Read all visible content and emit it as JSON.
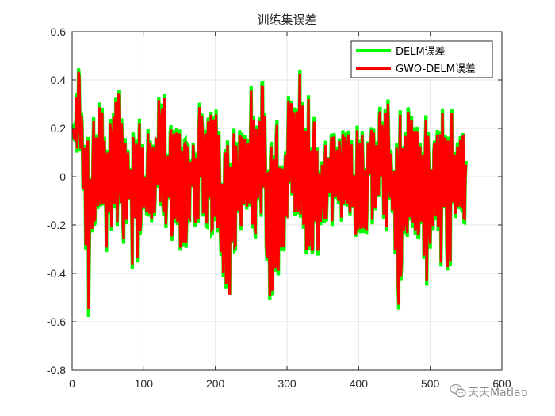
{
  "chart_data": {
    "type": "line",
    "title": "训练集误差",
    "xlabel": "",
    "ylabel": "",
    "xlim": [
      0,
      600
    ],
    "ylim": [
      -0.8,
      0.6
    ],
    "xticks": [
      0,
      100,
      200,
      300,
      400,
      500,
      600
    ],
    "yticks": [
      -0.8,
      -0.6,
      -0.4,
      -0.2,
      0,
      0.2,
      0.4,
      0.6
    ],
    "xtick_labels": [
      "0",
      "100",
      "200",
      "300",
      "400",
      "500",
      "600"
    ],
    "ytick_labels": [
      "-0.8",
      "-0.6",
      "-0.4",
      "-0.2",
      "0",
      "0.2",
      "0.4",
      "0.6"
    ],
    "grid": true,
    "legend_position": "top-right",
    "n_points": 550,
    "x_start": 1,
    "series": [
      {
        "name": "DELM误差",
        "color": "#00ff00",
        "envelope_x": [
          1,
          5,
          10,
          15,
          20,
          22,
          25,
          30,
          35,
          40,
          45,
          50,
          55,
          60,
          65,
          70,
          75,
          80,
          85,
          90,
          95,
          100,
          105,
          110,
          115,
          120,
          125,
          130,
          135,
          140,
          145,
          150,
          155,
          160,
          165,
          170,
          175,
          180,
          185,
          190,
          195,
          200,
          205,
          210,
          215,
          220,
          225,
          230,
          235,
          240,
          245,
          250,
          255,
          260,
          265,
          270,
          275,
          280,
          285,
          290,
          295,
          300,
          305,
          310,
          315,
          320,
          325,
          330,
          335,
          340,
          345,
          350,
          355,
          360,
          365,
          370,
          375,
          380,
          385,
          390,
          395,
          400,
          405,
          410,
          415,
          420,
          425,
          430,
          435,
          440,
          445,
          450,
          455,
          460,
          465,
          470,
          475,
          480,
          485,
          490,
          495,
          500,
          505,
          510,
          515,
          520,
          525,
          530,
          535,
          540,
          545,
          550
        ],
        "envelope_max": [
          0.22,
          0.3,
          0.55,
          0.15,
          0.3,
          0.25,
          0.2,
          0.3,
          0.25,
          0.35,
          0.2,
          0.25,
          0.3,
          0.32,
          0.48,
          0.2,
          0.15,
          0.25,
          0.2,
          0.2,
          0.28,
          0.15,
          0.2,
          0.3,
          0.25,
          0.48,
          0.3,
          0.38,
          0.2,
          0.28,
          0.2,
          0.25,
          0.15,
          0.2,
          0.15,
          0.32,
          0.1,
          0.48,
          0.25,
          0.3,
          0.4,
          0.3,
          0.2,
          0.22,
          0.2,
          0.15,
          0.2,
          0.22,
          0.2,
          0.25,
          0.2,
          0.38,
          0.35,
          0.2,
          0.45,
          0.3,
          0.25,
          0.1,
          0.25,
          0.2,
          0.15,
          0.25,
          0.52,
          0.3,
          0.45,
          0.48,
          0.32,
          0.42,
          0.2,
          0.3,
          0.15,
          0.1,
          0.2,
          0.25,
          0.25,
          0.2,
          0.3,
          0.2,
          0.25,
          0.18,
          0.2,
          0.25,
          0.22,
          0.15,
          0.45,
          0.25,
          0.2,
          0.3,
          0.32,
          0.4,
          0.15,
          0.2,
          0.15,
          0.38,
          0.25,
          0.32,
          0.3,
          0.25,
          0.2,
          0.25,
          0.3,
          0.2,
          0.35,
          0.2,
          0.32,
          0.38,
          0.25,
          0.3,
          0.2,
          0.15,
          0.3,
          0.1
        ],
        "envelope_min": [
          0.1,
          0.05,
          0.1,
          -0.1,
          -0.4,
          -0.68,
          -0.4,
          -0.25,
          -0.2,
          -0.35,
          -0.3,
          -0.35,
          -0.3,
          -0.2,
          -0.3,
          -0.35,
          -0.2,
          -0.3,
          -0.43,
          -0.38,
          -0.3,
          -0.25,
          -0.2,
          -0.3,
          -0.3,
          -0.15,
          -0.2,
          -0.3,
          -0.25,
          -0.3,
          -0.2,
          -0.45,
          -0.35,
          -0.3,
          -0.2,
          -0.25,
          -0.2,
          -0.3,
          -0.25,
          -0.2,
          -0.25,
          -0.2,
          -0.3,
          -0.44,
          -0.47,
          -0.5,
          -0.4,
          -0.3,
          -0.25,
          -0.3,
          -0.2,
          -0.25,
          -0.3,
          -0.2,
          -0.3,
          -0.4,
          -0.56,
          -0.53,
          -0.45,
          -0.4,
          -0.35,
          -0.3,
          -0.25,
          -0.2,
          -0.35,
          -0.25,
          -0.3,
          -0.4,
          -0.48,
          -0.38,
          -0.3,
          -0.2,
          -0.3,
          -0.15,
          -0.25,
          -0.2,
          -0.2,
          -0.3,
          -0.25,
          -0.3,
          -0.41,
          -0.33,
          -0.2,
          -0.3,
          -0.25,
          -0.2,
          -0.3,
          -0.25,
          -0.2,
          -0.25,
          -0.2,
          -0.3,
          -0.57,
          -0.48,
          -0.35,
          -0.3,
          -0.2,
          -0.3,
          -0.25,
          -0.45,
          -0.47,
          -0.3,
          -0.25,
          -0.2,
          -0.45,
          -0.35,
          -0.55,
          -0.3,
          -0.2,
          -0.25,
          -0.2,
          -0.25
        ]
      },
      {
        "name": "GWO-DELM误差",
        "color": "#ff0000",
        "envelope_x": [
          1,
          5,
          10,
          15,
          20,
          22,
          25,
          30,
          35,
          40,
          45,
          50,
          55,
          60,
          65,
          70,
          75,
          80,
          85,
          90,
          95,
          100,
          105,
          110,
          115,
          120,
          125,
          130,
          135,
          140,
          145,
          150,
          155,
          160,
          165,
          170,
          175,
          180,
          185,
          190,
          195,
          200,
          205,
          210,
          215,
          220,
          225,
          230,
          235,
          240,
          245,
          250,
          255,
          260,
          265,
          270,
          275,
          280,
          285,
          290,
          295,
          300,
          305,
          310,
          315,
          320,
          325,
          330,
          335,
          340,
          345,
          350,
          355,
          360,
          365,
          370,
          375,
          380,
          385,
          390,
          395,
          400,
          405,
          410,
          415,
          420,
          425,
          430,
          435,
          440,
          445,
          450,
          455,
          460,
          465,
          470,
          475,
          480,
          485,
          490,
          495,
          500,
          505,
          510,
          515,
          520,
          525,
          530,
          535,
          540,
          545,
          550
        ],
        "envelope_max": [
          0.2,
          0.28,
          0.53,
          0.13,
          0.28,
          0.23,
          0.18,
          0.28,
          0.23,
          0.33,
          0.18,
          0.23,
          0.28,
          0.3,
          0.46,
          0.18,
          0.13,
          0.23,
          0.18,
          0.18,
          0.26,
          0.13,
          0.18,
          0.28,
          0.23,
          0.46,
          0.28,
          0.36,
          0.18,
          0.26,
          0.18,
          0.23,
          0.13,
          0.18,
          0.13,
          0.3,
          0.08,
          0.46,
          0.23,
          0.28,
          0.38,
          0.28,
          0.18,
          0.2,
          0.18,
          0.13,
          0.18,
          0.2,
          0.18,
          0.23,
          0.18,
          0.36,
          0.33,
          0.18,
          0.43,
          0.28,
          0.23,
          0.08,
          0.23,
          0.18,
          0.13,
          0.23,
          0.5,
          0.28,
          0.43,
          0.46,
          0.3,
          0.4,
          0.18,
          0.28,
          0.13,
          0.08,
          0.18,
          0.23,
          0.23,
          0.18,
          0.28,
          0.18,
          0.23,
          0.16,
          0.18,
          0.23,
          0.2,
          0.13,
          0.43,
          0.23,
          0.18,
          0.28,
          0.3,
          0.38,
          0.13,
          0.18,
          0.13,
          0.36,
          0.23,
          0.3,
          0.28,
          0.23,
          0.18,
          0.23,
          0.28,
          0.18,
          0.33,
          0.18,
          0.3,
          0.36,
          0.23,
          0.28,
          0.18,
          0.13,
          0.28,
          0.08
        ],
        "envelope_min": [
          0.12,
          0.07,
          0.12,
          -0.08,
          -0.38,
          -0.64,
          -0.38,
          -0.23,
          -0.18,
          -0.33,
          -0.28,
          -0.33,
          -0.28,
          -0.18,
          -0.28,
          -0.33,
          -0.18,
          -0.28,
          -0.41,
          -0.36,
          -0.28,
          -0.23,
          -0.18,
          -0.28,
          -0.28,
          -0.13,
          -0.18,
          -0.28,
          -0.23,
          -0.28,
          -0.18,
          -0.43,
          -0.33,
          -0.28,
          -0.18,
          -0.23,
          -0.18,
          -0.28,
          -0.23,
          -0.18,
          -0.23,
          -0.18,
          -0.28,
          -0.42,
          -0.45,
          -0.5,
          -0.38,
          -0.28,
          -0.23,
          -0.28,
          -0.18,
          -0.23,
          -0.28,
          -0.18,
          -0.28,
          -0.38,
          -0.54,
          -0.51,
          -0.43,
          -0.38,
          -0.33,
          -0.28,
          -0.23,
          -0.18,
          -0.33,
          -0.23,
          -0.28,
          -0.38,
          -0.46,
          -0.36,
          -0.28,
          -0.18,
          -0.28,
          -0.13,
          -0.23,
          -0.18,
          -0.18,
          -0.28,
          -0.23,
          -0.28,
          -0.39,
          -0.31,
          -0.18,
          -0.28,
          -0.23,
          -0.18,
          -0.28,
          -0.23,
          -0.18,
          -0.23,
          -0.18,
          -0.28,
          -0.55,
          -0.46,
          -0.33,
          -0.28,
          -0.18,
          -0.28,
          -0.23,
          -0.43,
          -0.45,
          -0.28,
          -0.23,
          -0.18,
          -0.43,
          -0.33,
          -0.53,
          -0.28,
          -0.18,
          -0.23,
          -0.18,
          -0.23
        ]
      }
    ]
  },
  "watermark": {
    "text": "天天Matlab",
    "icon": "wechat-icon"
  }
}
